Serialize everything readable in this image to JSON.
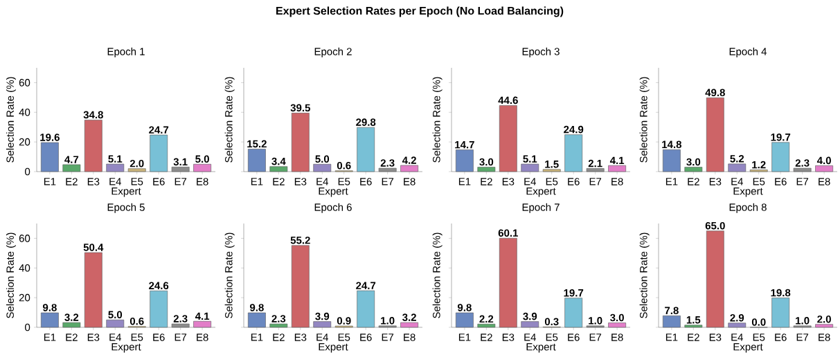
{
  "chart_data": [
    {
      "type": "bar",
      "title": "Epoch 1",
      "xlabel": "Expert",
      "ylabel": "Selection Rate (%)",
      "annotations": [
        "Expert Selection Rates per Epoch (No Load Balancing)"
      ],
      "categories": [
        "E1",
        "E2",
        "E3",
        "E4",
        "E5",
        "E6",
        "E7",
        "E8"
      ],
      "values": [
        19.6,
        4.7,
        34.8,
        5.1,
        2.0,
        24.7,
        3.1,
        5.0
      ],
      "value_labels": [
        "19.6",
        "4.7",
        "34.8",
        "5.1",
        "2.0",
        "24.7",
        "3.1",
        "5.0"
      ],
      "colors": [
        "#6a88c0",
        "#5aa86a",
        "#cd6467",
        "#9387c2",
        "#c9b37a",
        "#78c0d6",
        "#8c8c8c",
        "#e27ec8"
      ],
      "ylim": [
        0,
        70
      ],
      "yticks": [
        0,
        20,
        40,
        60
      ]
    },
    {
      "type": "bar",
      "title": "Epoch 2",
      "xlabel": "Expert",
      "ylabel": "Selection Rate (%)",
      "categories": [
        "E1",
        "E2",
        "E3",
        "E4",
        "E5",
        "E6",
        "E7",
        "E8"
      ],
      "values": [
        15.2,
        3.4,
        39.5,
        5.0,
        0.6,
        29.8,
        2.3,
        4.2
      ],
      "value_labels": [
        "15.2",
        "3.4",
        "39.5",
        "5.0",
        "0.6",
        "29.8",
        "2.3",
        "4.2"
      ],
      "colors": [
        "#6a88c0",
        "#5aa86a",
        "#cd6467",
        "#9387c2",
        "#c9b37a",
        "#78c0d6",
        "#8c8c8c",
        "#e27ec8"
      ],
      "ylim": [
        0,
        70
      ],
      "yticks": [
        0,
        20,
        40,
        60
      ],
      "tick_labels": "x"
    },
    {
      "type": "bar",
      "title": "Epoch 3",
      "xlabel": "Expert",
      "ylabel": "Selection Rate (%)",
      "categories": [
        "E1",
        "E2",
        "E3",
        "E4",
        "E5",
        "E6",
        "E7",
        "E8"
      ],
      "values": [
        14.7,
        3.0,
        44.6,
        5.1,
        1.5,
        24.9,
        2.1,
        4.1
      ],
      "value_labels": [
        "14.7",
        "3.0",
        "44.6",
        "5.1",
        "1.5",
        "24.9",
        "2.1",
        "4.1"
      ],
      "colors": [
        "#6a88c0",
        "#5aa86a",
        "#cd6467",
        "#9387c2",
        "#c9b37a",
        "#78c0d6",
        "#8c8c8c",
        "#e27ec8"
      ],
      "ylim": [
        0,
        70
      ],
      "yticks": [
        0,
        20,
        40,
        60
      ],
      "tick_labels": "x"
    },
    {
      "type": "bar",
      "title": "Epoch 4",
      "xlabel": "Expert",
      "ylabel": "Selection Rate (%)",
      "categories": [
        "E1",
        "E2",
        "E3",
        "E4",
        "E5",
        "E6",
        "E7",
        "E8"
      ],
      "values": [
        14.8,
        3.0,
        49.8,
        5.2,
        1.2,
        19.7,
        2.3,
        4.0
      ],
      "value_labels": [
        "14.8",
        "3.0",
        "49.8",
        "5.2",
        "1.2",
        "19.7",
        "2.3",
        "4.0"
      ],
      "colors": [
        "#6a88c0",
        "#5aa86a",
        "#cd6467",
        "#9387c2",
        "#c9b37a",
        "#78c0d6",
        "#8c8c8c",
        "#e27ec8"
      ],
      "ylim": [
        0,
        70
      ],
      "yticks": [
        0,
        20,
        40,
        60
      ],
      "tick_labels": "x"
    },
    {
      "type": "bar",
      "title": "Epoch 5",
      "xlabel": "Expert",
      "ylabel": "Selection Rate (%)",
      "categories": [
        "E1",
        "E2",
        "E3",
        "E4",
        "E5",
        "E6",
        "E7",
        "E8"
      ],
      "values": [
        9.8,
        3.2,
        50.4,
        5.0,
        0.6,
        24.6,
        2.3,
        4.1
      ],
      "value_labels": [
        "9.8",
        "3.2",
        "50.4",
        "5.0",
        "0.6",
        "24.6",
        "2.3",
        "4.1"
      ],
      "colors": [
        "#6a88c0",
        "#5aa86a",
        "#cd6467",
        "#9387c2",
        "#c9b37a",
        "#78c0d6",
        "#8c8c8c",
        "#e27ec8"
      ],
      "ylim": [
        0,
        70
      ],
      "yticks": [
        0,
        20,
        40,
        60
      ]
    },
    {
      "type": "bar",
      "title": "Epoch 6",
      "xlabel": "Expert",
      "ylabel": "Selection Rate (%)",
      "categories": [
        "E1",
        "E2",
        "E3",
        "E4",
        "E5",
        "E6",
        "E7",
        "E8"
      ],
      "values": [
        9.8,
        2.3,
        55.2,
        3.9,
        0.9,
        24.7,
        1.0,
        3.2
      ],
      "value_labels": [
        "9.8",
        "2.3",
        "55.2",
        "3.9",
        "0.9",
        "24.7",
        "1.0",
        "3.2"
      ],
      "colors": [
        "#6a88c0",
        "#5aa86a",
        "#cd6467",
        "#9387c2",
        "#c9b37a",
        "#78c0d6",
        "#8c8c8c",
        "#e27ec8"
      ],
      "ylim": [
        0,
        70
      ],
      "yticks": [
        0,
        20,
        40,
        60
      ],
      "tick_labels": "x"
    },
    {
      "type": "bar",
      "title": "Epoch 7",
      "xlabel": "Expert",
      "ylabel": "Selection Rate (%)",
      "categories": [
        "E1",
        "E2",
        "E3",
        "E4",
        "E5",
        "E6",
        "E7",
        "E8"
      ],
      "values": [
        9.8,
        2.2,
        60.1,
        3.9,
        0.3,
        19.7,
        1.0,
        3.0
      ],
      "value_labels": [
        "9.8",
        "2.2",
        "60.1",
        "3.9",
        "0.3",
        "19.7",
        "1.0",
        "3.0"
      ],
      "colors": [
        "#6a88c0",
        "#5aa86a",
        "#cd6467",
        "#9387c2",
        "#c9b37a",
        "#78c0d6",
        "#8c8c8c",
        "#e27ec8"
      ],
      "ylim": [
        0,
        70
      ],
      "yticks": [
        0,
        20,
        40,
        60
      ],
      "tick_labels": "x"
    },
    {
      "type": "bar",
      "title": "Epoch 8",
      "xlabel": "Expert",
      "ylabel": "Selection Rate (%)",
      "categories": [
        "E1",
        "E2",
        "E3",
        "E4",
        "E5",
        "E6",
        "E7",
        "E8"
      ],
      "values": [
        7.8,
        1.5,
        65.0,
        2.9,
        0.0,
        19.8,
        1.0,
        2.0
      ],
      "value_labels": [
        "7.8",
        "1.5",
        "65.0",
        "2.9",
        "0.0",
        "19.8",
        "1.0",
        "2.0"
      ],
      "colors": [
        "#6a88c0",
        "#5aa86a",
        "#cd6467",
        "#9387c2",
        "#c9b37a",
        "#78c0d6",
        "#8c8c8c",
        "#e27ec8"
      ],
      "ylim": [
        0,
        70
      ],
      "yticks": [
        0,
        20,
        40,
        60
      ],
      "tick_labels": "x"
    }
  ]
}
